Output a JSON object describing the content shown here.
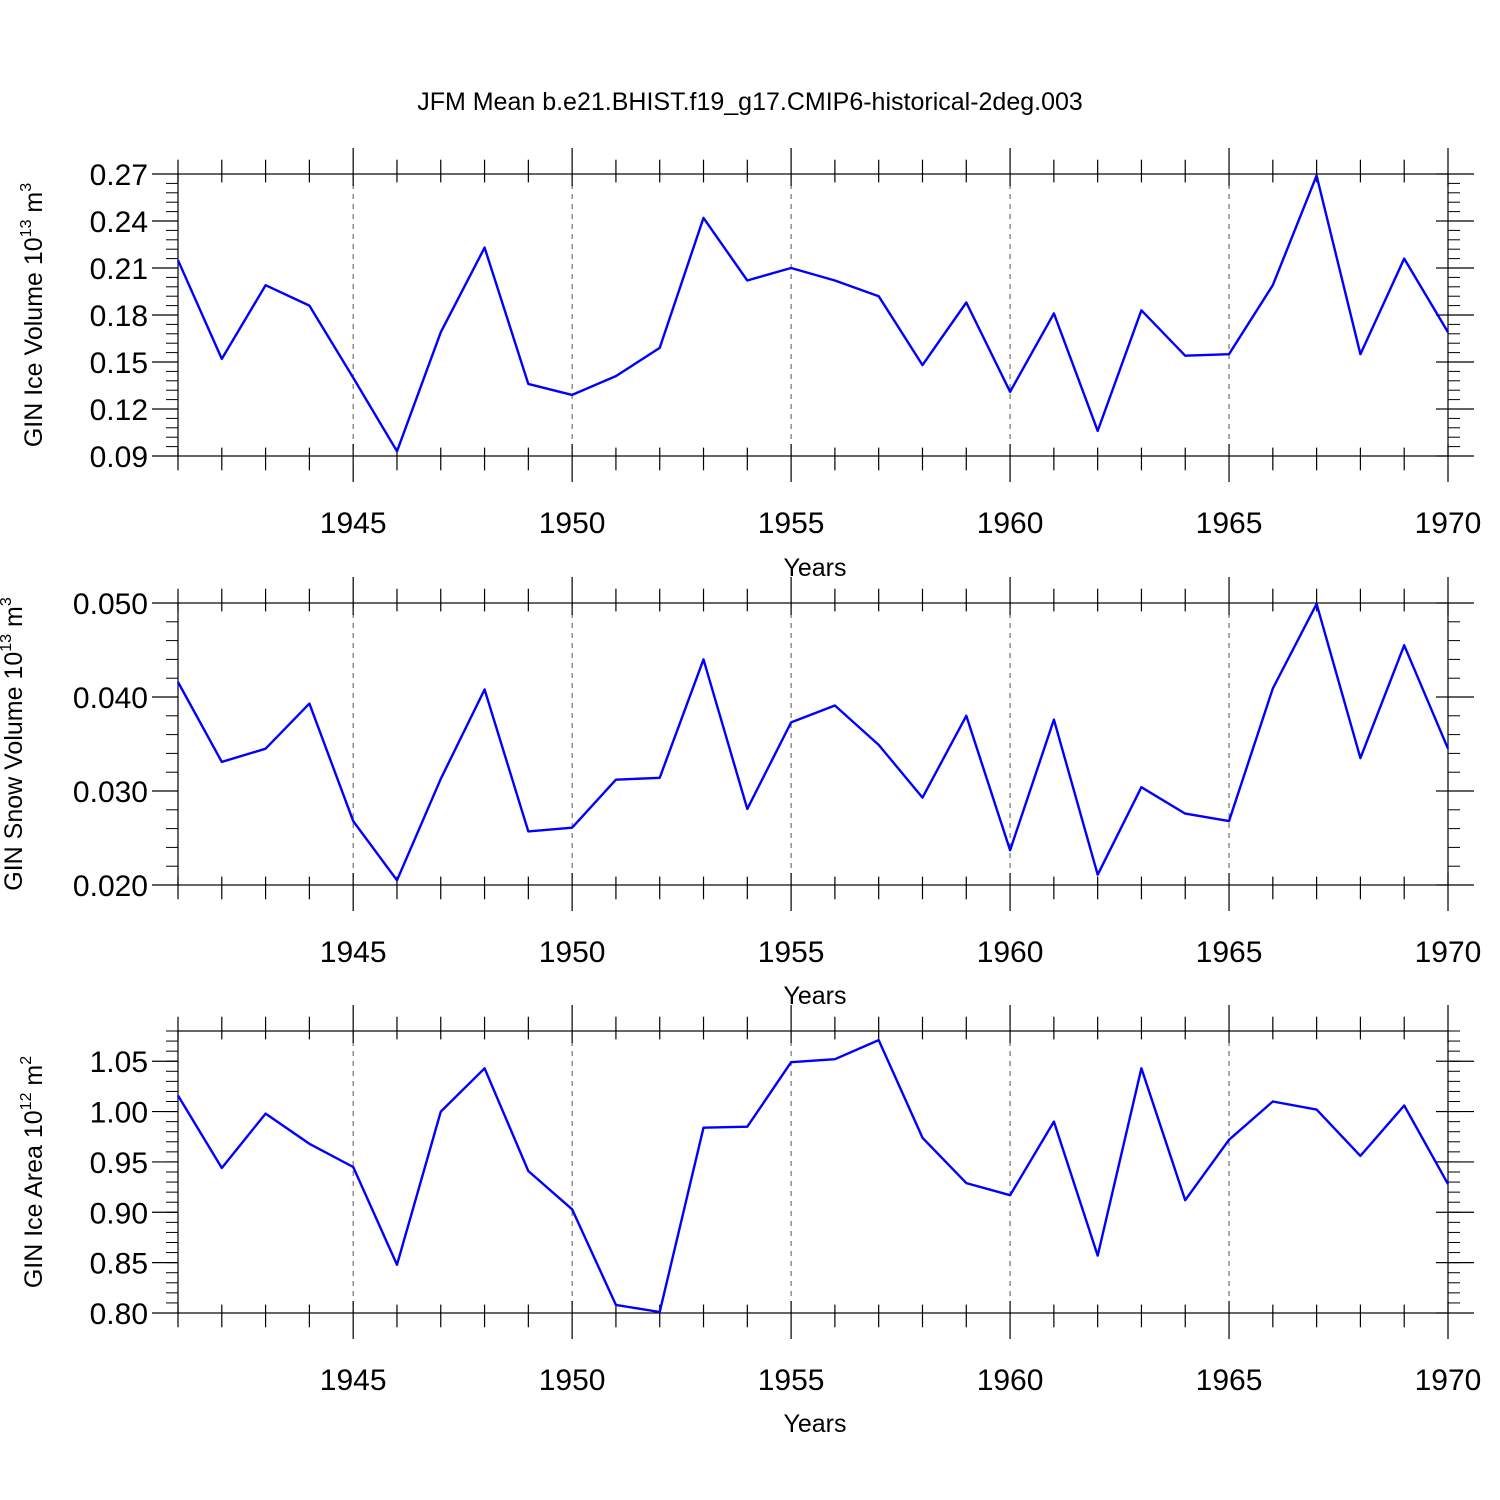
{
  "figure": {
    "title": "JFM Mean b.e21.BHIST.f19_g17.CMIP6-historical-2deg.003"
  },
  "colors": {
    "series": "#0000ff",
    "grid": "#555555"
  },
  "chart_data": [
    {
      "type": "line",
      "ylabel": "GIN Ice Volume 10",
      "ylabel_exp": "13",
      "ylabel_unit": " m",
      "ylabel_unit_exp": "3",
      "xlabel": "Years",
      "xlim": [
        1941,
        1970
      ],
      "ylim": [
        0.09,
        0.27
      ],
      "yticks": [
        "0.09",
        "0.12",
        "0.15",
        "0.18",
        "0.21",
        "0.24",
        "0.27"
      ],
      "ytick_values": [
        0.09,
        0.12,
        0.15,
        0.18,
        0.21,
        0.24,
        0.27
      ],
      "xticks": [
        1945,
        1950,
        1955,
        1960,
        1965,
        1970
      ],
      "grid": "dashed vertical at x ticks",
      "x": [
        1941,
        1942,
        1943,
        1944,
        1945,
        1946,
        1947,
        1948,
        1949,
        1950,
        1951,
        1952,
        1953,
        1954,
        1955,
        1956,
        1957,
        1958,
        1959,
        1960,
        1961,
        1962,
        1963,
        1964,
        1965,
        1966,
        1967,
        1968,
        1969,
        1970
      ],
      "values": [
        0.215,
        0.152,
        0.199,
        0.186,
        0.14,
        0.093,
        0.169,
        0.223,
        0.136,
        0.129,
        0.141,
        0.159,
        0.242,
        0.202,
        0.21,
        0.202,
        0.192,
        0.148,
        0.188,
        0.131,
        0.181,
        0.106,
        0.183,
        0.154,
        0.155,
        0.199,
        0.269,
        0.155,
        0.216,
        0.169
      ]
    },
    {
      "type": "line",
      "ylabel": "GIN Snow Volume 10",
      "ylabel_exp": "13",
      "ylabel_unit": " m",
      "ylabel_unit_exp": "3",
      "xlabel": "Years",
      "xlim": [
        1941,
        1970
      ],
      "ylim": [
        0.02,
        0.05
      ],
      "yticks": [
        "0.020",
        "0.030",
        "0.040",
        "0.050"
      ],
      "ytick_values": [
        0.02,
        0.03,
        0.04,
        0.05
      ],
      "xticks": [
        1945,
        1950,
        1955,
        1960,
        1965,
        1970
      ],
      "grid": "dashed vertical at x ticks",
      "x": [
        1941,
        1942,
        1943,
        1944,
        1945,
        1946,
        1947,
        1948,
        1949,
        1950,
        1951,
        1952,
        1953,
        1954,
        1955,
        1956,
        1957,
        1958,
        1959,
        1960,
        1961,
        1962,
        1963,
        1964,
        1965,
        1966,
        1967,
        1968,
        1969,
        1970
      ],
      "values": [
        0.0416,
        0.0331,
        0.0345,
        0.0393,
        0.0268,
        0.0205,
        0.0313,
        0.0408,
        0.0257,
        0.0261,
        0.0312,
        0.0314,
        0.044,
        0.0281,
        0.0373,
        0.0391,
        0.0349,
        0.0293,
        0.038,
        0.0237,
        0.0376,
        0.0211,
        0.0304,
        0.0276,
        0.0268,
        0.0409,
        0.0499,
        0.0335,
        0.0455,
        0.0345
      ]
    },
    {
      "type": "line",
      "ylabel": "GIN Ice Area 10",
      "ylabel_exp": "12",
      "ylabel_unit": " m",
      "ylabel_unit_exp": "2",
      "xlabel": "Years",
      "xlim": [
        1941,
        1970
      ],
      "ylim": [
        0.8,
        1.08
      ],
      "yticks": [
        "0.80",
        "0.85",
        "0.90",
        "0.95",
        "1.00",
        "1.05"
      ],
      "ytick_values": [
        0.8,
        0.85,
        0.9,
        0.95,
        1.0,
        1.05
      ],
      "xticks": [
        1945,
        1950,
        1955,
        1960,
        1965,
        1970
      ],
      "grid": "dashed vertical at x ticks",
      "x": [
        1941,
        1942,
        1943,
        1944,
        1945,
        1946,
        1947,
        1948,
        1949,
        1950,
        1951,
        1952,
        1953,
        1954,
        1955,
        1956,
        1957,
        1958,
        1959,
        1960,
        1961,
        1962,
        1963,
        1964,
        1965,
        1966,
        1967,
        1968,
        1969,
        1970
      ],
      "values": [
        1.016,
        0.944,
        0.998,
        0.968,
        0.945,
        0.848,
        1.0,
        1.043,
        0.941,
        0.903,
        0.808,
        0.801,
        0.984,
        0.985,
        1.049,
        1.052,
        1.071,
        0.974,
        0.929,
        0.917,
        0.99,
        0.857,
        1.043,
        0.912,
        0.972,
        1.01,
        1.002,
        0.956,
        1.006,
        0.928
      ]
    }
  ]
}
